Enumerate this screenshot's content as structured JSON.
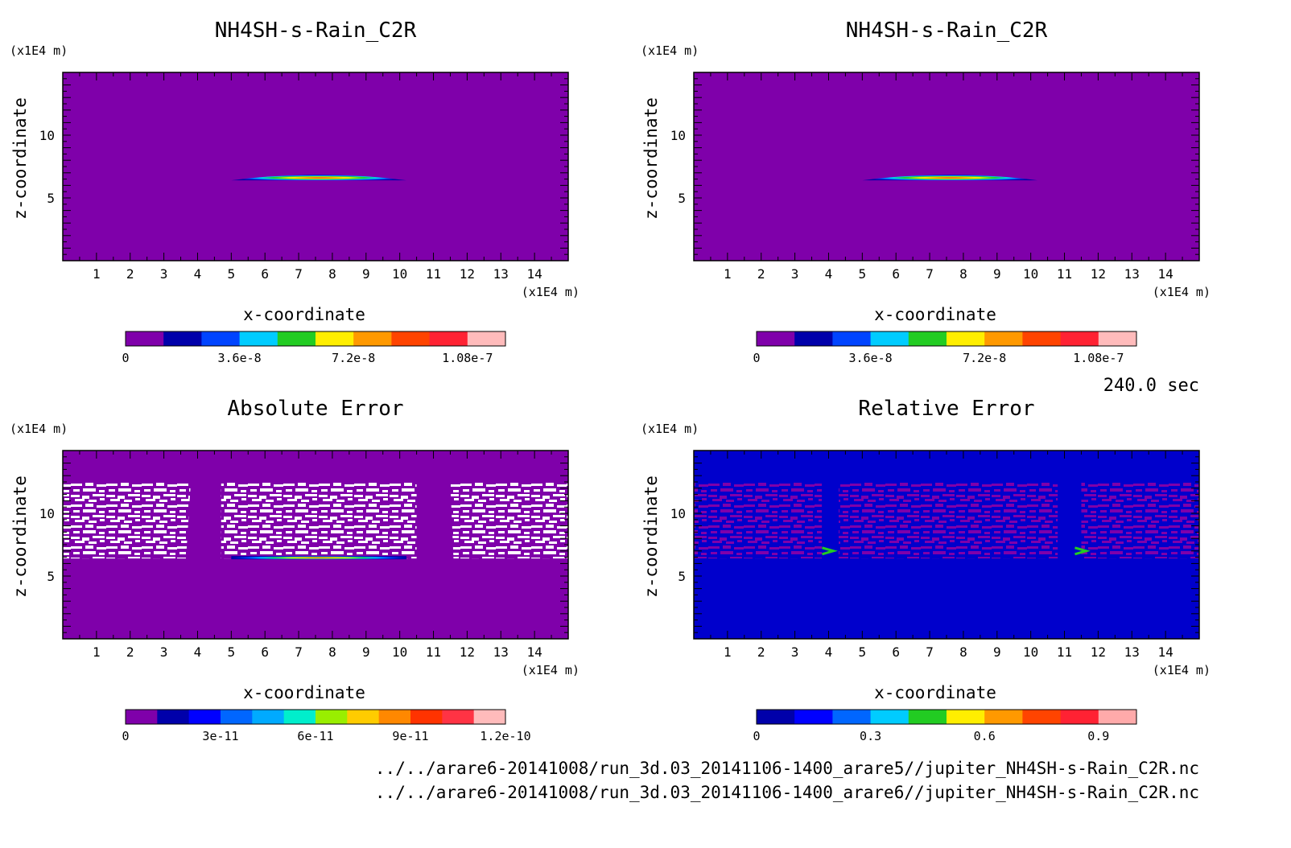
{
  "time_label": "240.0 sec",
  "file_paths": [
    "../../arare6-20141008/run_3d.03_20141106-1400_arare5//jupiter_NH4SH-s-Rain_C2R.nc",
    "../../arare6-20141008/run_3d.03_20141106-1400_arare6//jupiter_NH4SH-s-Rain_C2R.nc"
  ],
  "chart_data": [
    {
      "type": "heatmap",
      "title": "NH4SH-s-Rain_C2R",
      "xlabel": "x-coordinate",
      "ylabel": "z-coordinate",
      "x_unit": "(x1E4 m)",
      "y_unit": "(x1E4 m)",
      "xlim": [
        0,
        15
      ],
      "ylim": [
        0,
        15
      ],
      "x_ticks": [
        "1",
        "2",
        "3",
        "4",
        "5",
        "6",
        "7",
        "8",
        "9",
        "10",
        "11",
        "12",
        "13",
        "14"
      ],
      "y_ticks": [
        "5",
        "10"
      ],
      "background_color": "#7F00AA",
      "feature": {
        "description_values": {
          "x_range": [
            5.0,
            10.2
          ],
          "z_center": 6.4,
          "peak": 1.2e-07
        }
      },
      "colorbar": {
        "min": 0,
        "max": 1.2e-07,
        "tick_labels": [
          "0",
          "3.6e-8",
          "7.2e-8",
          "1.08e-7"
        ],
        "tick_values": [
          0,
          3.6e-08,
          7.2e-08,
          1.08e-07
        ],
        "colors": [
          "#7F00AA",
          "#0000AA",
          "#0044FF",
          "#00CCFF",
          "#22CC22",
          "#FFEE00",
          "#FF9900",
          "#FF4400",
          "#FF2233",
          "#FFBBBB"
        ]
      }
    },
    {
      "type": "heatmap",
      "title": "NH4SH-s-Rain_C2R",
      "xlabel": "x-coordinate",
      "ylabel": "z-coordinate",
      "x_unit": "(x1E4 m)",
      "y_unit": "(x1E4 m)",
      "xlim": [
        0,
        15
      ],
      "ylim": [
        0,
        15
      ],
      "x_ticks": [
        "1",
        "2",
        "3",
        "4",
        "5",
        "6",
        "7",
        "8",
        "9",
        "10",
        "11",
        "12",
        "13",
        "14"
      ],
      "y_ticks": [
        "5",
        "10"
      ],
      "background_color": "#7F00AA",
      "feature": {
        "description_values": {
          "x_range": [
            5.0,
            10.2
          ],
          "z_center": 6.4,
          "peak": 1.2e-07
        }
      },
      "colorbar": {
        "min": 0,
        "max": 1.2e-07,
        "tick_labels": [
          "0",
          "3.6e-8",
          "7.2e-8",
          "1.08e-7"
        ],
        "tick_values": [
          0,
          3.6e-08,
          7.2e-08,
          1.08e-07
        ],
        "colors": [
          "#7F00AA",
          "#0000AA",
          "#0044FF",
          "#00CCFF",
          "#22CC22",
          "#FFEE00",
          "#FF9900",
          "#FF4400",
          "#FF2233",
          "#FFBBBB"
        ]
      }
    },
    {
      "type": "heatmap",
      "title": "Absolute Error",
      "xlabel": "x-coordinate",
      "ylabel": "z-coordinate",
      "x_unit": "(x1E4 m)",
      "y_unit": "(x1E4 m)",
      "xlim": [
        0,
        15
      ],
      "ylim": [
        0,
        15
      ],
      "x_ticks": [
        "1",
        "2",
        "3",
        "4",
        "5",
        "6",
        "7",
        "8",
        "9",
        "10",
        "11",
        "12",
        "13",
        "14"
      ],
      "y_ticks": [
        "5",
        "10"
      ],
      "background_color": "#7F00AA",
      "undefined_color": "#FFFFFF",
      "undefined_regions_x": [
        [
          0,
          3.8
        ],
        [
          4.7,
          10.5
        ],
        [
          11.5,
          15
        ]
      ],
      "undefined_region_z": [
        6.4,
        12.5
      ],
      "colorbar": {
        "min": 0,
        "max": 1.2e-10,
        "tick_labels": [
          "0",
          "3e-11",
          "6e-11",
          "9e-11",
          "1.2e-10"
        ],
        "tick_values": [
          0,
          3e-11,
          6e-11,
          9e-11,
          1.2e-10
        ],
        "colors": [
          "#7F00AA",
          "#0000AA",
          "#0000FF",
          "#0066FF",
          "#00AAFF",
          "#00EECC",
          "#99EE00",
          "#FFCC00",
          "#FF8800",
          "#FF3300",
          "#FF3344",
          "#FFBBBB"
        ]
      }
    },
    {
      "type": "heatmap",
      "title": "Relative Error",
      "xlabel": "x-coordinate",
      "ylabel": "z-coordinate",
      "x_unit": "(x1E4 m)",
      "y_unit": "(x1E4 m)",
      "xlim": [
        0,
        15
      ],
      "ylim": [
        0,
        15
      ],
      "x_ticks": [
        "1",
        "2",
        "3",
        "4",
        "5",
        "6",
        "7",
        "8",
        "9",
        "10",
        "11",
        "12",
        "13",
        "14"
      ],
      "y_ticks": [
        "5",
        "10"
      ],
      "background_color": "#0000CC",
      "pattern_color": "#7F00AA",
      "pattern_regions_x": [
        [
          0,
          3.8
        ],
        [
          4.3,
          10.8
        ],
        [
          11.5,
          15
        ]
      ],
      "pattern_region_z": [
        6.4,
        12.5
      ],
      "hotspots": [
        {
          "x": 4.0,
          "z": 7.0
        },
        {
          "x": 11.5,
          "z": 7.0
        }
      ],
      "colorbar": {
        "min": 0,
        "max": 1.0,
        "tick_labels": [
          "0",
          "0.3",
          "0.6",
          "0.9"
        ],
        "tick_values": [
          0,
          0.3,
          0.6,
          0.9
        ],
        "colors": [
          "#0000AA",
          "#0000FF",
          "#0066FF",
          "#00CCFF",
          "#22CC22",
          "#FFEE00",
          "#FF9900",
          "#FF4400",
          "#FF2233",
          "#FFAAAA"
        ]
      }
    }
  ]
}
